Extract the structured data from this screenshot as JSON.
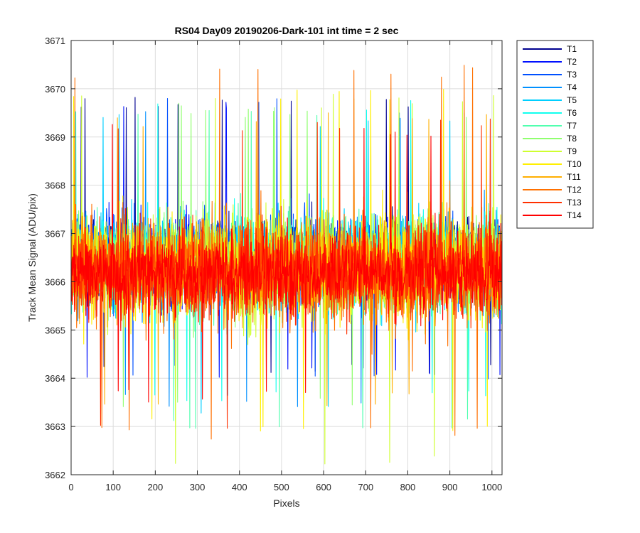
{
  "chart_data": {
    "type": "line",
    "title": "RS04 Day09 20190206-Dark-101 int time = 2 sec",
    "xlabel": "Pixels",
    "ylabel": "Track Mean Signal (ADU/pix)",
    "xlim": [
      0,
      1024
    ],
    "ylim": [
      3662,
      3671
    ],
    "xticks": [
      0,
      100,
      200,
      300,
      400,
      500,
      600,
      700,
      800,
      900,
      1000
    ],
    "yticks": [
      3662,
      3663,
      3664,
      3665,
      3666,
      3667,
      3668,
      3669,
      3670,
      3671
    ],
    "grid": true,
    "legend_position": "outside-top-right",
    "point_count": 1024,
    "series": [
      {
        "name": "T1",
        "color": "#00008f",
        "mean": 3666.45,
        "min": 3664.1,
        "max": 3669.9
      },
      {
        "name": "T2",
        "color": "#0010ff",
        "mean": 3666.45,
        "min": 3664.0,
        "max": 3669.8
      },
      {
        "name": "T3",
        "color": "#0050ff",
        "mean": 3666.45,
        "min": 3663.8,
        "max": 3669.9
      },
      {
        "name": "T4",
        "color": "#0090ff",
        "mean": 3666.4,
        "min": 3663.4,
        "max": 3669.6
      },
      {
        "name": "T5",
        "color": "#00cfff",
        "mean": 3666.4,
        "min": 3663.2,
        "max": 3669.5
      },
      {
        "name": "T6",
        "color": "#10ffef",
        "mean": 3666.4,
        "min": 3663.5,
        "max": 3669.8
      },
      {
        "name": "T7",
        "color": "#50ffaf",
        "mean": 3666.35,
        "min": 3662.9,
        "max": 3669.6
      },
      {
        "name": "T8",
        "color": "#90ff6f",
        "mean": 3666.35,
        "min": 3663.3,
        "max": 3669.7
      },
      {
        "name": "T9",
        "color": "#cfff30",
        "mean": 3666.3,
        "min": 3662.2,
        "max": 3669.9
      },
      {
        "name": "T10",
        "color": "#ffef00",
        "mean": 3666.3,
        "min": 3662.9,
        "max": 3670.0
      },
      {
        "name": "T11",
        "color": "#ffaf00",
        "mean": 3666.25,
        "min": 3663.4,
        "max": 3669.5
      },
      {
        "name": "T12",
        "color": "#ff7000",
        "mean": 3666.2,
        "min": 3662.7,
        "max": 3670.5
      },
      {
        "name": "T13",
        "color": "#ff3000",
        "mean": 3666.2,
        "min": 3662.8,
        "max": 3669.4
      },
      {
        "name": "T14",
        "color": "#ff0000",
        "mean": 3666.15,
        "min": 3663.5,
        "max": 3669.3
      }
    ]
  }
}
